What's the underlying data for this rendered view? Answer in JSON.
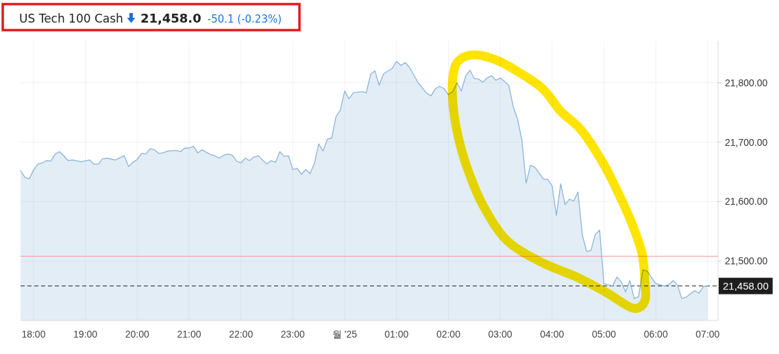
{
  "chart_data": {
    "type": "area",
    "title": "US Tech 100 Cash",
    "annotations": [
      "21,458.0",
      "-50.1 (-0.23%)"
    ],
    "x": [
      "2025-01-31T17:45",
      "2025-01-31T17:50",
      "2025-01-31T17:55",
      "2025-01-31T18:00",
      "2025-01-31T18:05",
      "2025-01-31T18:10",
      "2025-01-31T18:15",
      "2025-01-31T18:20",
      "2025-01-31T18:25",
      "2025-01-31T18:30",
      "2025-01-31T18:35",
      "2025-01-31T18:40",
      "2025-01-31T18:45",
      "2025-01-31T18:55",
      "2025-01-31T19:05",
      "2025-01-31T19:10",
      "2025-01-31T19:15",
      "2025-01-31T19:20",
      "2025-01-31T19:25",
      "2025-01-31T19:35",
      "2025-01-31T19:40",
      "2025-01-31T19:45",
      "2025-01-31T19:50",
      "2025-01-31T19:55",
      "2025-01-31T20:00",
      "2025-01-31T20:05",
      "2025-01-31T20:10",
      "2025-01-31T20:15",
      "2025-01-31T20:20",
      "2025-01-31T20:25",
      "2025-01-31T20:30",
      "2025-01-31T20:35",
      "2025-01-31T20:45",
      "2025-01-31T20:50",
      "2025-01-31T20:55",
      "2025-01-31T21:00",
      "2025-01-31T21:05",
      "2025-01-31T21:10",
      "2025-01-31T21:15",
      "2025-01-31T21:20",
      "2025-01-31T21:25",
      "2025-01-31T21:30",
      "2025-01-31T21:35",
      "2025-01-31T21:40",
      "2025-01-31T21:45",
      "2025-01-31T21:50",
      "2025-01-31T21:55",
      "2025-01-31T22:00",
      "2025-01-31T22:05",
      "2025-01-31T22:10",
      "2025-01-31T22:15",
      "2025-01-31T22:20",
      "2025-01-31T22:25",
      "2025-01-31T22:30",
      "2025-01-31T22:35",
      "2025-01-31T22:40",
      "2025-01-31T22:45",
      "2025-01-31T22:50",
      "2025-01-31T22:55",
      "2025-01-31T23:00",
      "2025-01-31T23:05",
      "2025-01-31T23:10",
      "2025-01-31T23:15",
      "2025-01-31T23:20",
      "2025-01-31T23:25",
      "2025-01-31T23:30",
      "2025-01-31T23:35",
      "2025-01-31T23:40",
      "2025-01-31T23:45",
      "2025-01-31T23:50",
      "2025-01-31T23:55",
      "2025-02-01T00:00",
      "2025-02-01T00:05",
      "2025-02-01T00:10",
      "2025-02-01T00:20",
      "2025-02-01T00:25",
      "2025-02-01T00:30",
      "2025-02-01T00:35",
      "2025-02-01T00:40",
      "2025-02-01T00:45",
      "2025-02-01T00:55",
      "2025-02-01T01:00",
      "2025-02-01T01:05",
      "2025-02-01T01:10",
      "2025-02-01T01:15",
      "2025-02-01T01:20",
      "2025-02-01T01:25",
      "2025-02-01T01:35",
      "2025-02-01T01:40",
      "2025-02-01T01:45",
      "2025-02-01T01:50",
      "2025-02-01T01:55",
      "2025-02-01T02:00",
      "2025-02-01T02:05",
      "2025-02-01T02:10",
      "2025-02-01T02:15",
      "2025-02-01T02:20",
      "2025-02-01T02:25",
      "2025-02-01T02:30",
      "2025-02-01T02:35",
      "2025-02-01T02:40",
      "2025-02-01T02:45",
      "2025-02-01T02:50",
      "2025-02-01T02:55",
      "2025-02-01T03:00",
      "2025-02-01T03:05",
      "2025-02-01T03:10",
      "2025-02-01T03:15",
      "2025-02-01T03:20",
      "2025-02-01T03:25",
      "2025-02-01T03:30",
      "2025-02-01T03:35",
      "2025-02-01T03:40",
      "2025-02-01T03:50",
      "2025-02-01T03:55",
      "2025-02-01T04:00",
      "2025-02-01T04:05",
      "2025-02-01T04:10",
      "2025-02-01T04:15",
      "2025-02-01T04:20",
      "2025-02-01T04:25",
      "2025-02-01T04:30",
      "2025-02-01T04:35",
      "2025-02-01T04:40",
      "2025-02-01T04:45",
      "2025-02-01T04:50",
      "2025-02-01T04:55",
      "2025-02-01T05:00",
      "2025-02-01T05:10",
      "2025-02-01T05:15",
      "2025-02-01T05:20",
      "2025-02-01T05:25",
      "2025-02-01T05:30",
      "2025-02-01T05:35",
      "2025-02-01T05:40",
      "2025-02-01T05:45",
      "2025-02-01T05:50",
      "2025-02-01T05:55",
      "2025-02-01T06:00",
      "2025-02-01T06:10",
      "2025-02-01T06:15",
      "2025-02-01T06:20",
      "2025-02-01T06:25",
      "2025-02-01T06:30",
      "2025-02-01T06:35",
      "2025-02-01T06:40",
      "2025-02-01T06:45",
      "2025-02-01T06:50",
      "2025-02-01T06:55",
      "2025-02-01T07:00"
    ],
    "series": [
      {
        "color": "#8ab4d8",
        "values": [
          21652,
          21641,
          21638,
          21653,
          21663,
          21665,
          21669,
          21668,
          21680,
          21684,
          21677,
          21669,
          21670,
          21667,
          21670,
          21663,
          21663,
          21672,
          21673,
          21670,
          21674,
          21677,
          21659,
          21666,
          21671,
          21681,
          21680,
          21689,
          21687,
          21681,
          21682,
          21685,
          21686,
          21684,
          21690,
          21690,
          21693,
          21682,
          21687,
          21683,
          21679,
          21677,
          21673,
          21678,
          21680,
          21678,
          21668,
          21665,
          21673,
          21669,
          21675,
          21677,
          21670,
          21663,
          21669,
          21666,
          21684,
          21676,
          21677,
          21654,
          21656,
          21646,
          21654,
          21647,
          21664,
          21697,
          21685,
          21705,
          21707,
          21743,
          21754,
          21786,
          21773,
          21783,
          21785,
          21783,
          21814,
          21820,
          21796,
          21815,
          21824,
          21836,
          21829,
          21834,
          21826,
          21813,
          21800,
          21782,
          21778,
          21790,
          21794,
          21790,
          21780,
          21785,
          21800,
          21786,
          21811,
          21821,
          21807,
          21806,
          21801,
          21808,
          21812,
          21804,
          21808,
          21802,
          21795,
          21760,
          21739,
          21704,
          21631,
          21661,
          21658,
          21638,
          21637,
          21627,
          21577,
          21630,
          21595,
          21604,
          21601,
          21616,
          21544,
          21516,
          21518,
          21545,
          21552,
          21462,
          21458,
          21473,
          21465,
          21448,
          21467,
          21437,
          21440,
          21485,
          21483,
          21472,
          21462,
          21458,
          21460,
          21467,
          21460,
          21437,
          21439,
          21445,
          21450,
          21446,
          21457,
          21458
        ]
      }
    ],
    "xlim": [
      "2025-01-31T17:45",
      "2025-02-01T07:12"
    ],
    "xticks": [
      {
        "value": "2025-01-31T18:00",
        "label": "18:00"
      },
      {
        "value": "2025-01-31T19:00",
        "label": "19:00"
      },
      {
        "value": "2025-01-31T20:00",
        "label": "20:00"
      },
      {
        "value": "2025-01-31T21:00",
        "label": "21:00"
      },
      {
        "value": "2025-01-31T22:00",
        "label": "22:00"
      },
      {
        "value": "2025-01-31T23:00",
        "label": "23:00"
      },
      {
        "value": "2025-02-01T00:00",
        "label": "월 '25"
      },
      {
        "value": "2025-02-01T01:00",
        "label": "01:00"
      },
      {
        "value": "2025-02-01T02:00",
        "label": "02:00"
      },
      {
        "value": "2025-02-01T03:00",
        "label": "03:00"
      },
      {
        "value": "2025-02-01T04:00",
        "label": "04:00"
      },
      {
        "value": "2025-02-01T05:00",
        "label": "05:00"
      },
      {
        "value": "2025-02-01T06:00",
        "label": "06:00"
      },
      {
        "value": "2025-02-01T07:00",
        "label": "07:00"
      }
    ],
    "ylim": [
      21400,
      21870
    ],
    "yticks": [
      {
        "value": 21500,
        "label": "21,500.00"
      },
      {
        "value": 21600,
        "label": "21,600.00"
      },
      {
        "value": 21700,
        "label": "21,700.00"
      },
      {
        "value": 21800,
        "label": "21,800.00"
      }
    ],
    "grid": true,
    "ref_lines": [
      {
        "axis": "y",
        "value": 21508,
        "color": "#f29191",
        "line_style": "solid"
      },
      {
        "axis": "y",
        "value": 21458,
        "label": "21,458.00",
        "color": "#1e1e1e",
        "line_style": "dashed"
      }
    ]
  }
}
